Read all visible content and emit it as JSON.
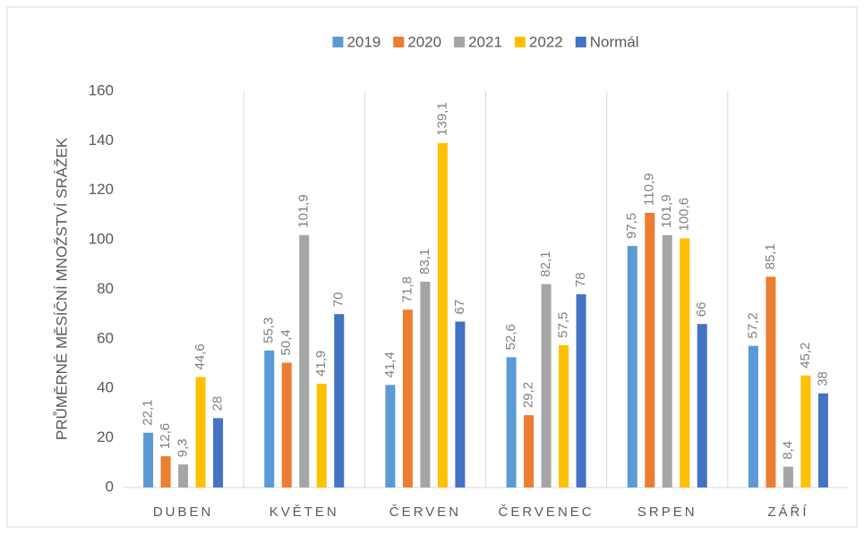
{
  "chart_data": {
    "type": "bar",
    "y_label": "PRŮMĚRNÉ MĚSÍČNÍ MNOŽSTVÍ SRÁŽEK",
    "categories": [
      "DUBEN",
      "KVĚTEN",
      "ČERVEN",
      "ČERVENEC",
      "SRPEN",
      "ZÁŘÍ"
    ],
    "series": [
      {
        "name": "2019",
        "color": "#5b9bd5",
        "values": [
          22.1,
          55.3,
          41.4,
          52.6,
          97.5,
          57.2
        ],
        "value_labels": [
          "22,1",
          "55,3",
          "41,4",
          "52,6",
          "97,5",
          "57,2"
        ]
      },
      {
        "name": "2020",
        "color": "#ed7d31",
        "values": [
          12.6,
          50.4,
          71.8,
          29.2,
          110.9,
          85.1
        ],
        "value_labels": [
          "12,6",
          "50,4",
          "71,8",
          "29,2",
          "110,9",
          "85,1"
        ]
      },
      {
        "name": "2021",
        "color": "#a5a5a5",
        "values": [
          9.3,
          101.9,
          83.1,
          82.1,
          101.9,
          8.4
        ],
        "value_labels": [
          "9,3",
          "101,9",
          "83,1",
          "82,1",
          "101,9",
          "8,4"
        ]
      },
      {
        "name": "2022",
        "color": "#ffc000",
        "values": [
          44.6,
          41.9,
          139.1,
          57.5,
          100.6,
          45.2
        ],
        "value_labels": [
          "44,6",
          "41,9",
          "139,1",
          "57,5",
          "100,6",
          "45,2"
        ]
      },
      {
        "name": "Normál",
        "color": "#4472c4",
        "values": [
          28,
          70,
          67,
          78,
          66,
          38
        ]
      }
    ],
    "ylim": [
      0,
      160
    ],
    "yticks": [
      0,
      20,
      40,
      60,
      80,
      100,
      120,
      140,
      160
    ],
    "legend": "top"
  }
}
